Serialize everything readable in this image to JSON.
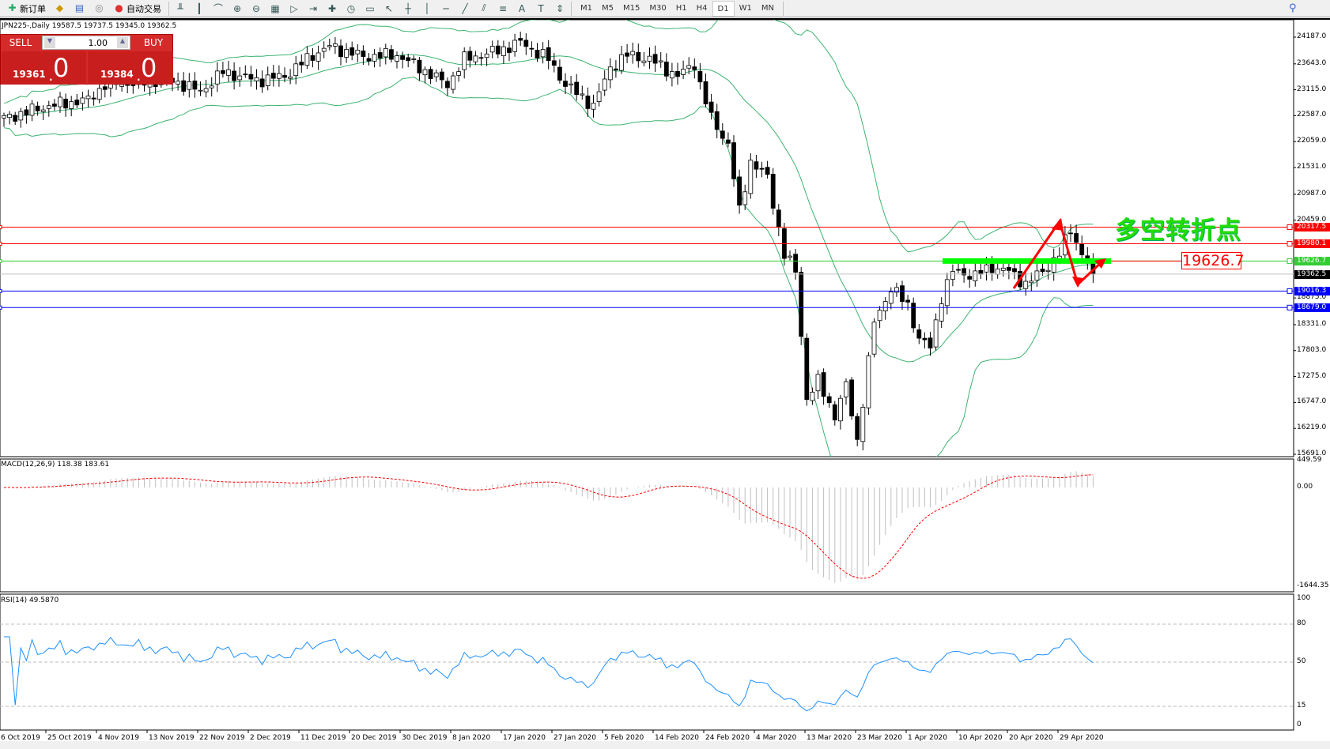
{
  "toolbar": {
    "items": [
      {
        "label": "新订单",
        "icon": "new-order-icon"
      },
      {
        "label": "",
        "icon": "history-icon"
      },
      {
        "label": "",
        "icon": "terminal-icon"
      },
      {
        "label": "",
        "icon": "signals-icon"
      },
      {
        "label": "自动交易",
        "icon": "autotrading-icon"
      }
    ],
    "tools": [
      "bar-chart-icon",
      "candlestick-icon",
      "line-chart-icon",
      "zoom-in-icon",
      "zoom-out-icon",
      "tile-windows-icon",
      "autoscroll-icon",
      "chart-shift-icon",
      "indicators-icon",
      "periods-icon",
      "templates-icon",
      "cursor-icon",
      "crosshair-icon",
      "vertical-line-icon",
      "horizontal-line-icon",
      "trendline-icon",
      "equidistant-channel-icon",
      "fibonacci-icon",
      "text-icon",
      "text-label-icon",
      "arrows-icon"
    ],
    "timeframes": [
      "M1",
      "M5",
      "M15",
      "M30",
      "H1",
      "H4",
      "D1",
      "W1",
      "MN"
    ],
    "active_timeframe": "D1"
  },
  "chart": {
    "title": "JPN225-,Daily  19587.5 19737.5 19345.0 19362.5",
    "one_click": {
      "sell_label": "SELL",
      "buy_label": "BUY",
      "lot": "1.00",
      "sell_price_small": "19361",
      "sell_price_big": "0",
      "buy_price_small": "19384",
      "buy_price_big": "0"
    },
    "annotation": "多空转折点",
    "level_box": "19626.7",
    "price_axis": [
      "24187.0",
      "23643.0",
      "23115.0",
      "22587.0",
      "22059.0",
      "21531.0",
      "20987.0",
      "20459.0",
      "18875.0",
      "18331.0",
      "17803.0",
      "17275.0",
      "16747.0",
      "16219.0",
      "15691.0"
    ],
    "levels": [
      {
        "value": "20317.5",
        "color": "#ff0000"
      },
      {
        "value": "19980.1",
        "color": "#ff0000"
      },
      {
        "value": "19626.7",
        "color": "#33cc33"
      },
      {
        "value": "19362.5",
        "color": "#000000"
      },
      {
        "value": "19016.3",
        "color": "#0000ff"
      },
      {
        "value": "18679.0",
        "color": "#0000ff"
      }
    ],
    "dates": [
      "6 Oct 2019",
      "25 Oct 2019",
      "4 Nov 2019",
      "13 Nov 2019",
      "22 Nov 2019",
      "2 Dec 2019",
      "11 Dec 2019",
      "20 Dec 2019",
      "30 Dec 2019",
      "8 Jan 2020",
      "17 Jan 2020",
      "27 Jan 2020",
      "5 Feb 2020",
      "14 Feb 2020",
      "24 Feb 2020",
      "4 Mar 2020",
      "13 Mar 2020",
      "23 Mar 2020",
      "1 Apr 2020",
      "10 Apr 2020",
      "20 Apr 2020",
      "29 Apr 2020"
    ],
    "colors": {
      "bands": "#3cb371",
      "macd_signal": "#ff0000",
      "histogram": "#c0c0c0",
      "rsi": "#1e90ff",
      "arrow": "#ff0000",
      "support_bar": "#00ff00"
    }
  },
  "macd": {
    "label": "MACD(12,26,9) 118.38 183.61",
    "axis": [
      "449.59",
      "0.00",
      "-1644.35"
    ]
  },
  "rsi": {
    "label": "RSI(14) 49.5870",
    "axis": [
      "100",
      "80",
      "50",
      "15",
      "0"
    ]
  },
  "chart_data": {
    "type": "candlestick",
    "bars": 195,
    "close_keypoints": [
      [
        0,
        22529
      ],
      [
        8,
        22790
      ],
      [
        15,
        22909
      ],
      [
        18,
        23220
      ],
      [
        30,
        23306
      ],
      [
        35,
        23080
      ],
      [
        39,
        23479
      ],
      [
        45,
        23306
      ],
      [
        50,
        23393
      ],
      [
        55,
        23824
      ],
      [
        58,
        23997
      ],
      [
        64,
        23790
      ],
      [
        70,
        23824
      ],
      [
        74,
        23565
      ],
      [
        79,
        23220
      ],
      [
        82,
        23738
      ],
      [
        88,
        23910
      ],
      [
        92,
        24083
      ],
      [
        97,
        23738
      ],
      [
        100,
        23220
      ],
      [
        105,
        22790
      ],
      [
        108,
        23565
      ],
      [
        111,
        23824
      ],
      [
        115,
        23738
      ],
      [
        120,
        23393
      ],
      [
        123,
        23652
      ],
      [
        124,
        23220
      ],
      [
        126,
        22529
      ],
      [
        129,
        22011
      ],
      [
        131,
        20630
      ],
      [
        133,
        21666
      ],
      [
        136,
        21320
      ],
      [
        138,
        20284
      ],
      [
        139,
        19766
      ],
      [
        141,
        19420
      ],
      [
        143,
        16830
      ],
      [
        145,
        17175
      ],
      [
        148,
        16484
      ],
      [
        150,
        17089
      ],
      [
        152,
        15967
      ],
      [
        155,
        18385
      ],
      [
        158,
        19075
      ],
      [
        161,
        18730
      ],
      [
        163,
        18040
      ],
      [
        165,
        17867
      ],
      [
        167,
        18903
      ],
      [
        169,
        19420
      ],
      [
        173,
        19334
      ],
      [
        176,
        19507
      ],
      [
        179,
        19420
      ],
      [
        182,
        19161
      ],
      [
        185,
        19420
      ],
      [
        188,
        19766
      ],
      [
        190,
        20284
      ],
      [
        192,
        19766
      ],
      [
        194,
        19362
      ]
    ],
    "ylim": [
      15691,
      24187
    ]
  }
}
